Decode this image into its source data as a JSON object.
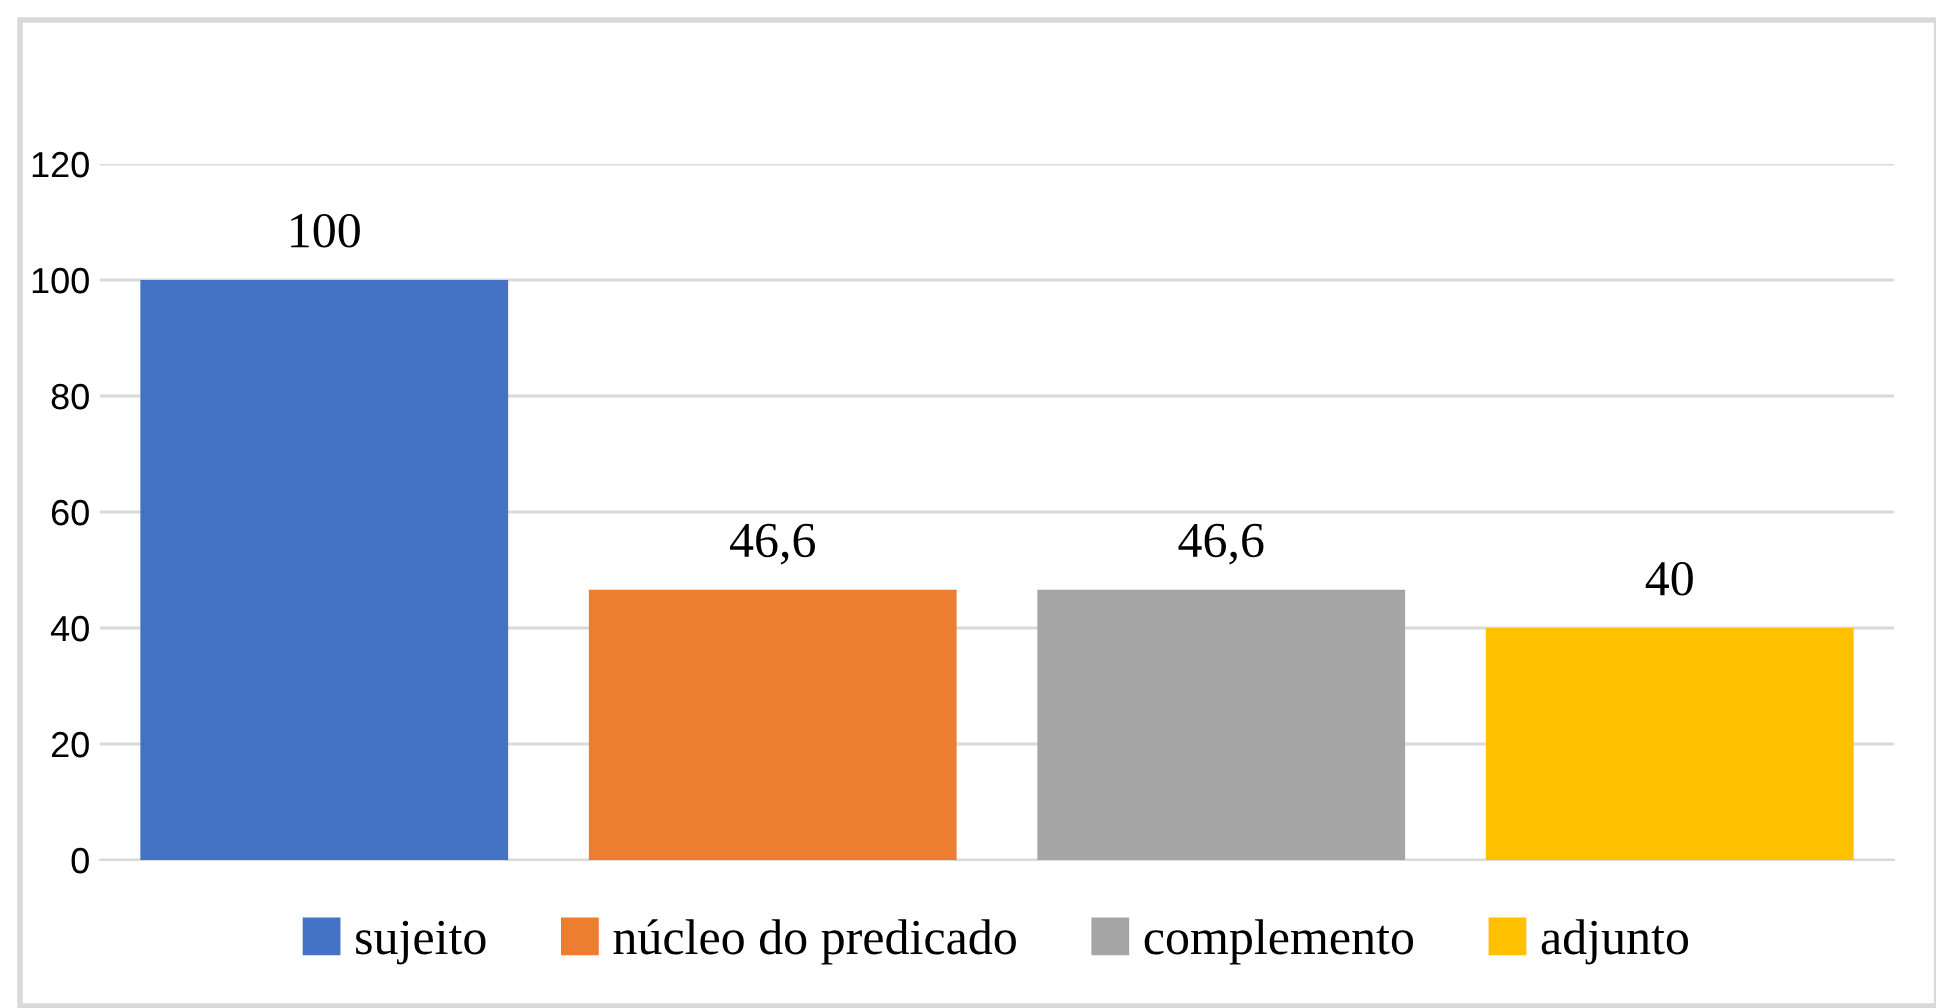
{
  "chart_data": {
    "type": "bar",
    "categories": [
      null,
      null,
      null,
      null
    ],
    "series": [
      {
        "name": "sujeito",
        "color": "#4472c4",
        "values": [
          100,
          null,
          null,
          null
        ]
      },
      {
        "name": "núcleo do predicado",
        "color": "#ed7d31",
        "values": [
          null,
          46.6,
          null,
          null
        ]
      },
      {
        "name": "complemento",
        "color": "#a5a5a5",
        "values": [
          null,
          null,
          46.6,
          null
        ]
      },
      {
        "name": "adjunto",
        "color": "#ffc000",
        "values": [
          null,
          null,
          null,
          40
        ]
      }
    ],
    "value_labels": [
      "100",
      "46,6",
      "46,6",
      "40"
    ],
    "ylim": [
      0,
      120
    ],
    "yticks": [
      0,
      20,
      40,
      60,
      80,
      100,
      120
    ],
    "grid": "y",
    "legend": "bottom"
  }
}
